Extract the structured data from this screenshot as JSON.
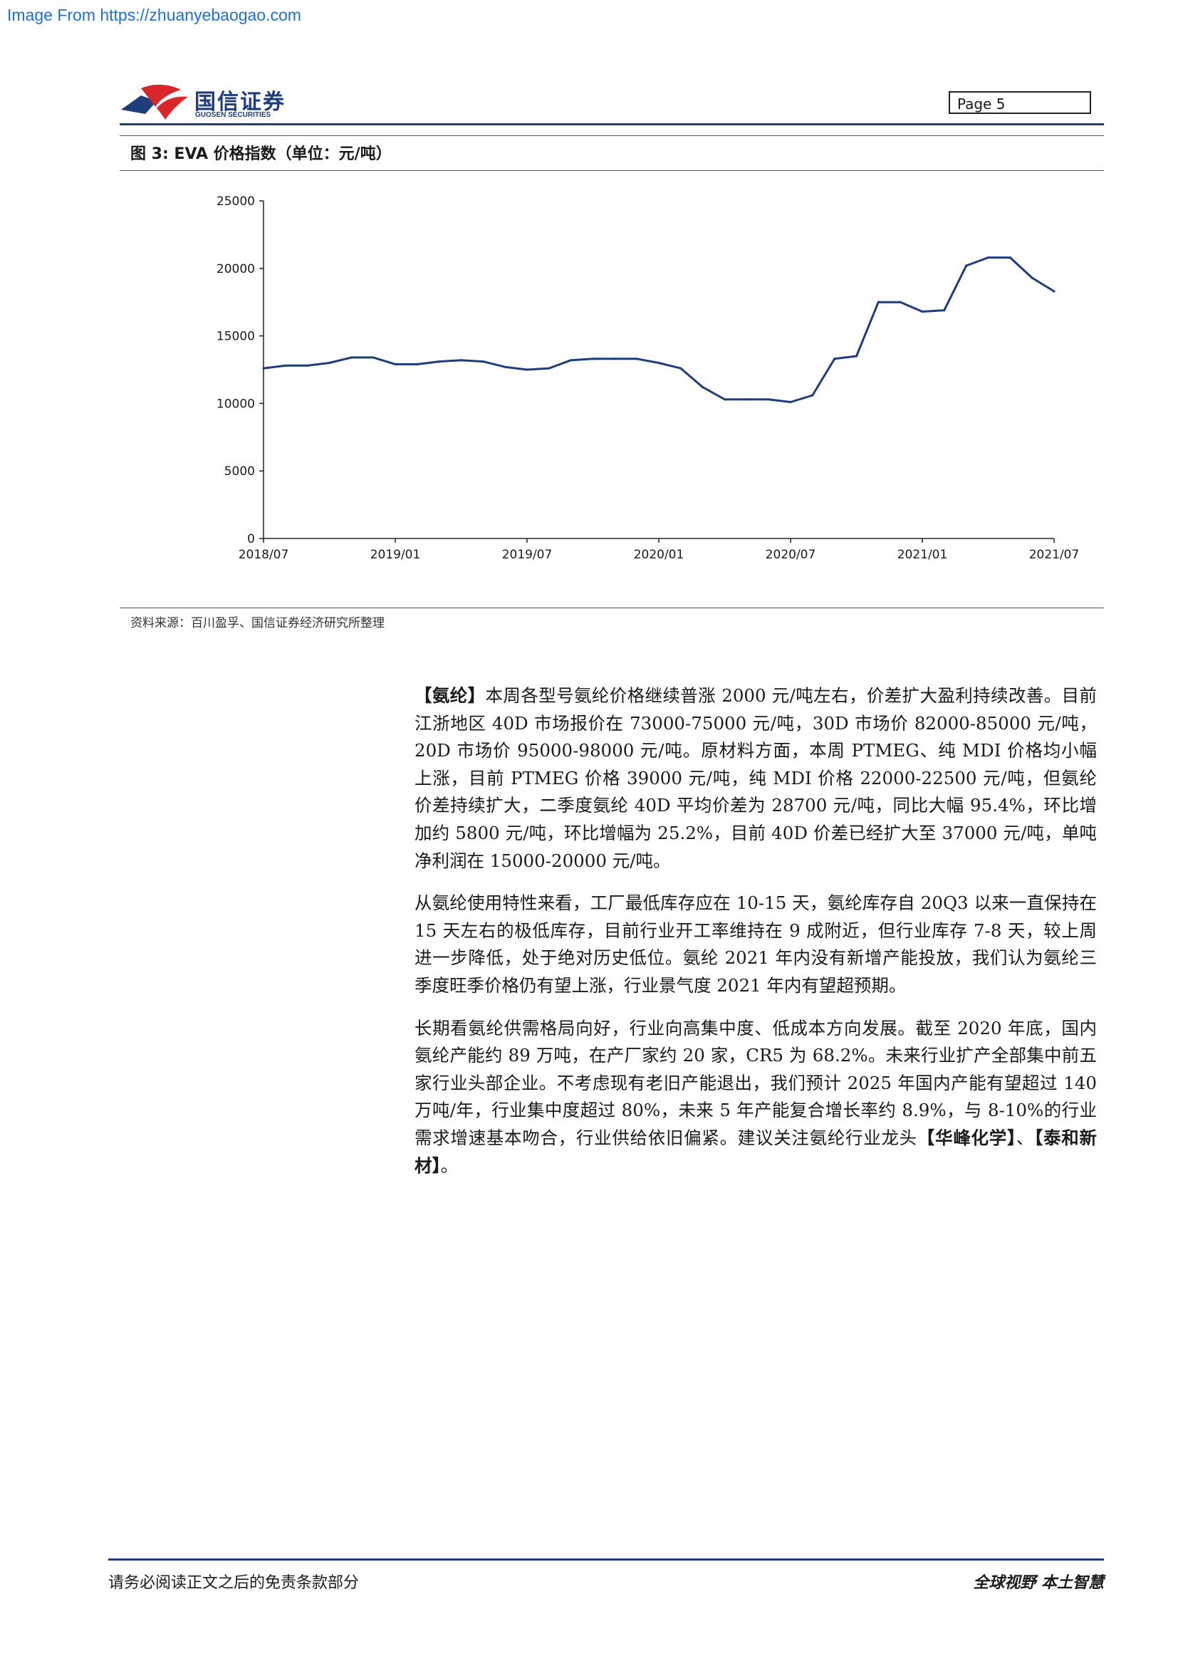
{
  "watermark": "Image From https://zhuanyebaogao.com",
  "header": {
    "logo_cn": "国信证券",
    "logo_en": "GUOSEN SECURITIES",
    "page_label": "Page  5"
  },
  "figure": {
    "title": "图 3: EVA 价格指数（单位：元/吨）",
    "source": "资料来源：百川盈孚、国信证券经济研究所整理"
  },
  "chart_data": {
    "type": "line",
    "title": "",
    "xlabel": "",
    "ylabel": "",
    "ylim": [
      0,
      25000
    ],
    "yticks": [
      "0",
      "5000",
      "10000",
      "15000",
      "20000",
      "25000"
    ],
    "xticks": [
      "2018/07",
      "2019/01",
      "2019/07",
      "2020/01",
      "2020/07",
      "2021/01",
      "2021/07"
    ],
    "grid": false,
    "series": [
      {
        "name": "",
        "color": "#1f3d7a",
        "x": [
          "2018/07",
          "2018/08",
          "2018/09",
          "2018/10",
          "2018/11",
          "2018/12",
          "2019/01",
          "2019/02",
          "2019/03",
          "2019/04",
          "2019/05",
          "2019/06",
          "2019/07",
          "2019/08",
          "2019/09",
          "2019/10",
          "2019/11",
          "2019/12",
          "2020/01",
          "2020/02",
          "2020/03",
          "2020/04",
          "2020/05",
          "2020/06",
          "2020/07",
          "2020/08",
          "2020/09",
          "2020/10",
          "2020/11",
          "2020/12",
          "2021/01",
          "2021/02",
          "2021/03",
          "2021/04",
          "2021/05",
          "2021/06",
          "2021/07"
        ],
        "values": [
          12600,
          12800,
          12800,
          13000,
          13400,
          13400,
          12900,
          12900,
          13100,
          13200,
          13100,
          12700,
          12500,
          12600,
          13200,
          13300,
          13300,
          13300,
          13000,
          12600,
          11200,
          10300,
          10300,
          10300,
          10100,
          10600,
          13300,
          13500,
          17500,
          17500,
          16800,
          16900,
          20200,
          20800,
          20800,
          19300,
          18300
        ]
      }
    ]
  },
  "paragraphs": [
    [
      {
        "t": "【氨纶】",
        "b": true
      },
      {
        "t": "本周各型号氨纶价格继续普涨 2000 元/吨左右，价差扩大盈利持续改善。目前江浙地区 40D 市场报价在 73000-75000 元/吨，30D 市场价 82000-85000 元/吨，20D 市场价 95000-98000 元/吨。原材料方面，本周 PTMEG、纯 MDI 价格均小幅上涨，目前 PTMEG 价格 39000 元/吨，纯 MDI 价格 22000-22500 元/吨，但氨纶价差持续扩大，二季度氨纶 40D 平均价差为 28700 元/吨，同比大幅 95.4%，环比增加约 5800 元/吨，环比增幅为 25.2%，目前 40D 价差已经扩大至 37000 元/吨，单吨净利润在 15000-20000 元/吨。",
        "b": false
      }
    ],
    [
      {
        "t": "从氨纶使用特性来看，工厂最低库存应在 10-15 天，氨纶库存自 20Q3 以来一直保持在 15 天左右的极低库存，目前行业开工率维持在 9 成附近，但行业库存 7-8 天，较上周进一步降低，处于绝对历史低位。氨纶 2021 年内没有新增产能投放，我们认为氨纶三季度旺季价格仍有望上涨，行业景气度 2021 年内有望超预期。",
        "b": false
      }
    ],
    [
      {
        "t": "长期看氨纶供需格局向好，行业向高集中度、低成本方向发展。截至 2020 年底，国内氨纶产能约 89 万吨，在产厂家约 20 家，CR5 为 68.2%。未来行业扩产全部集中前五家行业头部企业。不考虑现有老旧产能退出，我们预计 2025 年国内产能有望超过 140 万吨/年，行业集中度超过 80%，未来 5 年产能复合增长率约 8.9%，与 8-10%的行业需求增速基本吻合，行业供给依旧偏紧。建议关注氨纶行业龙头",
        "b": false
      },
      {
        "t": "【华峰化学】",
        "b": true
      },
      {
        "t": "、",
        "b": false
      },
      {
        "t": "【泰和新材】",
        "b": true
      },
      {
        "t": "。",
        "b": false
      }
    ]
  ],
  "footer": {
    "left": "请务必阅读正文之后的免责条款部分",
    "right": "全球视野  本土智慧"
  }
}
